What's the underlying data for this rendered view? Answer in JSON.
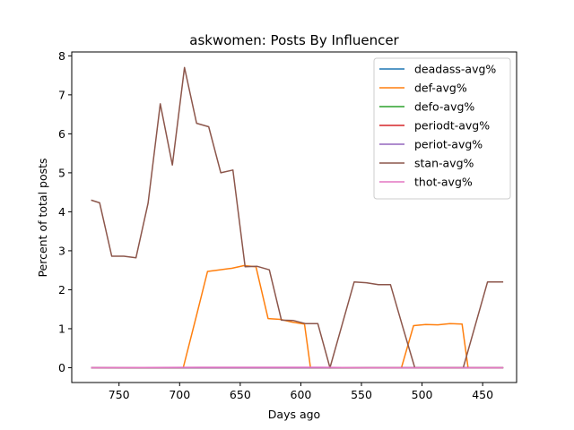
{
  "chart_data": {
    "type": "line",
    "title": "askwomen: Posts By Influencer",
    "xlabel": "Days ago",
    "ylabel": "Percent of total posts",
    "xlim": [
      789,
      422
    ],
    "ylim": [
      -0.38,
      8.1
    ],
    "x_inverted": true,
    "xticks": [
      750,
      700,
      650,
      600,
      550,
      500,
      450
    ],
    "yticks": [
      0,
      1,
      2,
      3,
      4,
      5,
      6,
      7,
      8
    ],
    "grid": false,
    "legend_position": "top-right",
    "series": [
      {
        "name": "deadass-avg%",
        "color": "#1f77b4",
        "x": [
          773,
          433
        ],
        "y": [
          0.0,
          0.0
        ]
      },
      {
        "name": "def-avg%",
        "color": "#ff7f0e",
        "x": [
          773,
          697,
          687,
          677,
          667,
          657,
          647,
          637,
          627,
          617,
          607,
          597,
          592,
          572,
          517,
          507,
          497,
          487,
          477,
          467,
          462,
          433
        ],
        "y": [
          0.0,
          0.0,
          1.23,
          2.47,
          2.51,
          2.55,
          2.62,
          2.59,
          1.26,
          1.24,
          1.17,
          1.12,
          0.0,
          0.0,
          0.0,
          1.08,
          1.11,
          1.1,
          1.13,
          1.12,
          0.0,
          0.0
        ]
      },
      {
        "name": "defo-avg%",
        "color": "#2ca02c",
        "x": [
          773,
          433
        ],
        "y": [
          0.0,
          0.0
        ]
      },
      {
        "name": "periodt-avg%",
        "color": "#d62728",
        "x": [
          773,
          433
        ],
        "y": [
          0.0,
          0.0
        ]
      },
      {
        "name": "periot-avg%",
        "color": "#9467bd",
        "x": [
          773,
          433
        ],
        "y": [
          0.0,
          0.0
        ]
      },
      {
        "name": "stan-avg%",
        "color": "#8c564b",
        "x": [
          773,
          766,
          756,
          746,
          736,
          726,
          716,
          706,
          696,
          686,
          676,
          666,
          656,
          646,
          636,
          626,
          616,
          606,
          596,
          586,
          576,
          556,
          546,
          536,
          526,
          516,
          506,
          496,
          476,
          466,
          446,
          433
        ],
        "y": [
          4.3,
          4.23,
          2.86,
          2.86,
          2.82,
          4.22,
          6.77,
          5.2,
          7.7,
          6.27,
          6.18,
          5.0,
          5.07,
          2.59,
          2.6,
          2.51,
          1.22,
          1.21,
          1.13,
          1.13,
          0.0,
          2.2,
          2.18,
          2.13,
          2.13,
          1.05,
          0.0,
          0.0,
          0.0,
          0.0,
          2.2,
          2.2
        ]
      },
      {
        "name": "thot-avg%",
        "color": "#e377c2",
        "x": [
          773,
          683,
          653,
          583,
          543,
          513,
          483,
          433
        ],
        "y": [
          0.0,
          0.01,
          0.01,
          0.01,
          0.0,
          0.0,
          0.0,
          0.0
        ]
      }
    ]
  }
}
